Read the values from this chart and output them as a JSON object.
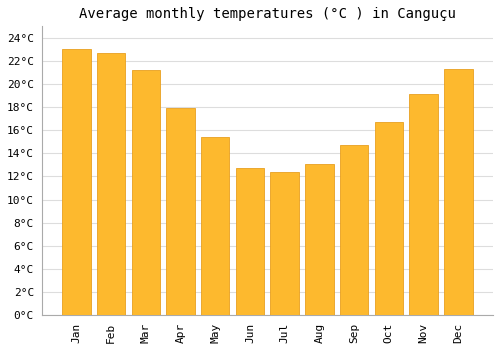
{
  "title": "Average monthly temperatures (°C ) in Canguçu",
  "months": [
    "Jan",
    "Feb",
    "Mar",
    "Apr",
    "May",
    "Jun",
    "Jul",
    "Aug",
    "Sep",
    "Oct",
    "Nov",
    "Dec"
  ],
  "values": [
    23.0,
    22.7,
    21.2,
    17.9,
    15.4,
    12.7,
    12.4,
    13.1,
    14.7,
    16.7,
    19.1,
    21.3
  ],
  "bar_color": "#FDB92E",
  "bar_edge_color": "#E8A020",
  "background_color": "#FFFFFF",
  "grid_color": "#DDDDDD",
  "ylim": [
    0,
    25
  ],
  "ytick_step": 2,
  "title_fontsize": 10,
  "tick_fontsize": 8,
  "font_family": "monospace"
}
